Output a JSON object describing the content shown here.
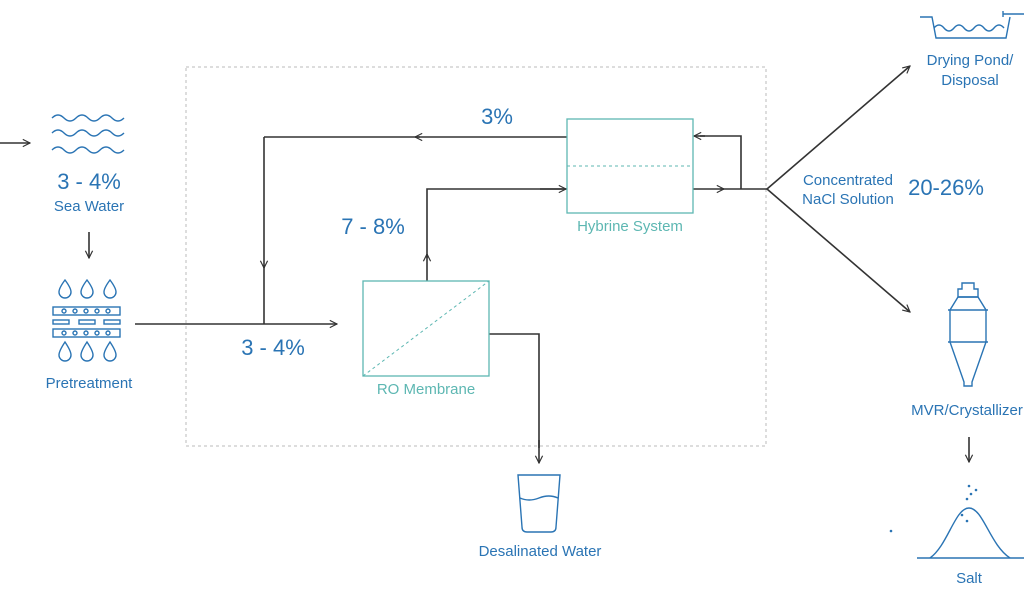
{
  "colors": {
    "label_blue": "#2a74b4",
    "box_teal": "#5db7b2",
    "flow_line": "#333333",
    "frame_dashed": "#bbbbbb"
  },
  "sea_water": {
    "concentration": "3 - 4%",
    "label": "Sea Water",
    "icon": "waves-icon"
  },
  "pretreatment": {
    "label": "Pretreatment",
    "icon": "filter-drops-icon"
  },
  "feed": {
    "concentration": "3 - 4%"
  },
  "ro_membrane": {
    "label": "RO Membrane",
    "concentrate": "7 - 8%"
  },
  "hybrine": {
    "label": "Hybrine System",
    "recycle": "3%"
  },
  "desalinated": {
    "label": "Desalinated Water",
    "icon": "glass-of-water-icon"
  },
  "concentrated": {
    "label_line1": "Concentrated",
    "label_line2": "NaCl Solution",
    "concentration": "20-26%"
  },
  "drying_pond": {
    "label_line1": "Drying Pond/",
    "label_line2": "Disposal",
    "icon": "pond-icon"
  },
  "mvr": {
    "label": "MVR/Crystallizer",
    "icon": "crystallizer-icon"
  },
  "salt": {
    "label": "Salt",
    "icon": "salt-pile-icon"
  }
}
